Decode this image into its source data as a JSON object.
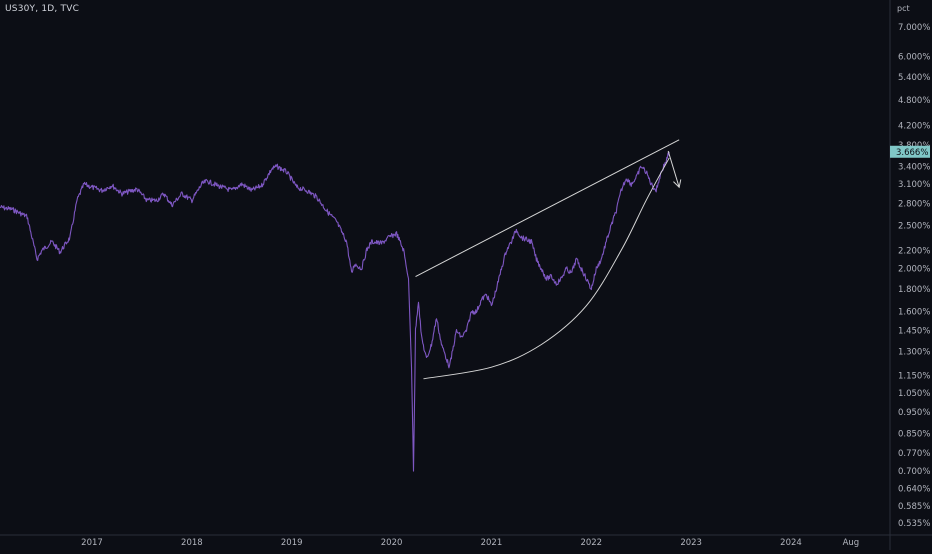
{
  "header": {
    "symbol": "US30Y, 1D, TVC"
  },
  "chart_data": {
    "type": "line",
    "title": "US30Y, 1D, TVC",
    "xlabel": "",
    "ylabel": "",
    "y_unit": "pct",
    "y_scale": "log",
    "ylim": [
      0.5,
      8.0
    ],
    "xlim": [
      2016.08,
      2024.9
    ],
    "x_ticks": [
      {
        "label": "2017",
        "value": 2017.0
      },
      {
        "label": "2018",
        "value": 2018.0
      },
      {
        "label": "2019",
        "value": 2019.0
      },
      {
        "label": "2020",
        "value": 2020.0
      },
      {
        "label": "2021",
        "value": 2021.0
      },
      {
        "label": "2022",
        "value": 2022.0
      },
      {
        "label": "2023",
        "value": 2023.0
      },
      {
        "label": "2024",
        "value": 2024.0
      },
      {
        "label": "Aug",
        "value": 2024.6
      }
    ],
    "y_ticks": [
      "7.000%",
      "6.000%",
      "5.400%",
      "4.800%",
      "4.200%",
      "3.800%",
      "3.400%",
      "3.100%",
      "2.800%",
      "2.500%",
      "2.200%",
      "2.000%",
      "1.800%",
      "1.600%",
      "1.450%",
      "1.300%",
      "1.150%",
      "1.050%",
      "0.950%",
      "0.850%",
      "0.770%",
      "0.700%",
      "0.640%",
      "0.585%",
      "0.535%"
    ],
    "y_tick_values": [
      7.0,
      6.0,
      5.4,
      4.8,
      4.2,
      3.8,
      3.4,
      3.1,
      2.8,
      2.5,
      2.2,
      2.0,
      1.8,
      1.6,
      1.45,
      1.3,
      1.15,
      1.05,
      0.95,
      0.85,
      0.77,
      0.7,
      0.64,
      0.585,
      0.535
    ],
    "last_value_label": "3.666%",
    "last_value": 3.666,
    "grid": false,
    "series": [
      {
        "color": "#7e57c2",
        "x": [
          2016.08,
          2016.2,
          2016.35,
          2016.45,
          2016.5,
          2016.6,
          2016.68,
          2016.78,
          2016.85,
          2016.92,
          2017.0,
          2017.1,
          2017.2,
          2017.3,
          2017.45,
          2017.55,
          2017.65,
          2017.72,
          2017.8,
          2017.9,
          2018.0,
          2018.1,
          2018.15,
          2018.3,
          2018.4,
          2018.5,
          2018.6,
          2018.7,
          2018.8,
          2018.85,
          2018.95,
          2019.05,
          2019.15,
          2019.25,
          2019.35,
          2019.45,
          2019.55,
          2019.6,
          2019.63,
          2019.7,
          2019.75,
          2019.8,
          2019.9,
          2019.97,
          2020.05,
          2020.12,
          2020.17,
          2020.2,
          2020.22,
          2020.24,
          2020.27,
          2020.3,
          2020.35,
          2020.4,
          2020.45,
          2020.5,
          2020.58,
          2020.65,
          2020.7,
          2020.75,
          2020.8,
          2020.85,
          2020.9,
          2020.95,
          2021.0,
          2021.05,
          2021.1,
          2021.15,
          2021.2,
          2021.25,
          2021.3,
          2021.4,
          2021.45,
          2021.5,
          2021.55,
          2021.6,
          2021.65,
          2021.7,
          2021.75,
          2021.8,
          2021.85,
          2021.9,
          2021.95,
          2022.0,
          2022.05,
          2022.1,
          2022.15,
          2022.2,
          2022.25,
          2022.3,
          2022.35,
          2022.4,
          2022.45,
          2022.5,
          2022.55,
          2022.6,
          2022.65,
          2022.7,
          2022.75,
          2022.78
        ],
        "y": [
          2.75,
          2.72,
          2.62,
          2.1,
          2.2,
          2.3,
          2.18,
          2.35,
          2.85,
          3.1,
          3.05,
          3.0,
          3.08,
          2.95,
          3.02,
          2.85,
          2.85,
          2.95,
          2.78,
          2.95,
          2.85,
          3.1,
          3.15,
          3.05,
          3.0,
          3.1,
          3.0,
          3.08,
          3.35,
          3.4,
          3.3,
          3.05,
          3.0,
          2.9,
          2.7,
          2.55,
          2.3,
          1.95,
          2.05,
          2.0,
          2.2,
          2.3,
          2.28,
          2.35,
          2.4,
          2.2,
          1.9,
          1.2,
          0.7,
          1.45,
          1.7,
          1.4,
          1.25,
          1.35,
          1.55,
          1.35,
          1.2,
          1.45,
          1.4,
          1.45,
          1.6,
          1.6,
          1.7,
          1.75,
          1.65,
          1.8,
          2.0,
          2.2,
          2.3,
          2.45,
          2.35,
          2.3,
          2.1,
          2.0,
          1.9,
          1.92,
          1.85,
          1.9,
          2.0,
          1.95,
          2.1,
          2.0,
          1.9,
          1.8,
          2.0,
          2.1,
          2.3,
          2.5,
          2.7,
          3.0,
          3.2,
          3.1,
          3.2,
          3.4,
          3.3,
          3.1,
          3.0,
          3.3,
          3.5,
          3.666
        ]
      }
    ],
    "annotations": [
      {
        "type": "trendline",
        "color": "#d6d6d6",
        "x": [
          2020.24,
          2022.88
        ],
        "y": [
          1.92,
          3.9
        ]
      },
      {
        "type": "arc",
        "color": "#d6d6d6",
        "x": [
          2020.32,
          2021.0,
          2021.5,
          2021.95,
          2022.3,
          2022.55,
          2022.78
        ],
        "y": [
          1.13,
          1.2,
          1.35,
          1.65,
          2.2,
          2.85,
          3.55
        ]
      },
      {
        "type": "arrow",
        "color": "#d6d6d6",
        "x": [
          2022.77,
          2022.88
        ],
        "y": [
          3.68,
          3.05
        ]
      }
    ]
  }
}
